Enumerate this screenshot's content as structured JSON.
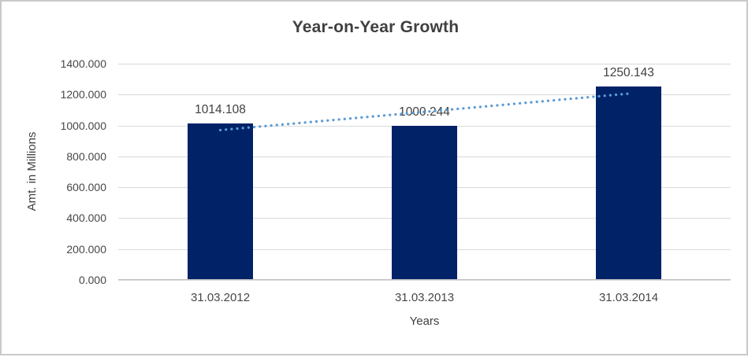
{
  "chart_data": {
    "type": "bar",
    "title": "Year-on-Year Growth",
    "xlabel": "Years",
    "ylabel": "Amt. in Millions",
    "categories": [
      "31.03.2012",
      "31.03.2013",
      "31.03.2014"
    ],
    "values": [
      1014.108,
      1000.244,
      1250.143
    ],
    "data_labels": [
      "1014.108",
      "1000.244",
      "1250.143"
    ],
    "ylim": [
      0,
      1400
    ],
    "ytick_step": 200,
    "ytick_labels": [
      "0.000",
      "200.000",
      "400.000",
      "600.000",
      "800.000",
      "1000.000",
      "1200.000",
      "1400.000"
    ],
    "grid": true,
    "legend_position": "none",
    "trendline": {
      "type": "linear",
      "style": "dotted"
    }
  },
  "colors": {
    "bar_fill": "#022268",
    "trendline": "#5b9bd5",
    "gridline": "#d9d9d9",
    "axis_line": "#c0c0c0",
    "title_text": "#404040",
    "label_text": "#404040",
    "tick_text": "#474747",
    "frame_border": "#c9c9c9",
    "background": "#ffffff"
  }
}
